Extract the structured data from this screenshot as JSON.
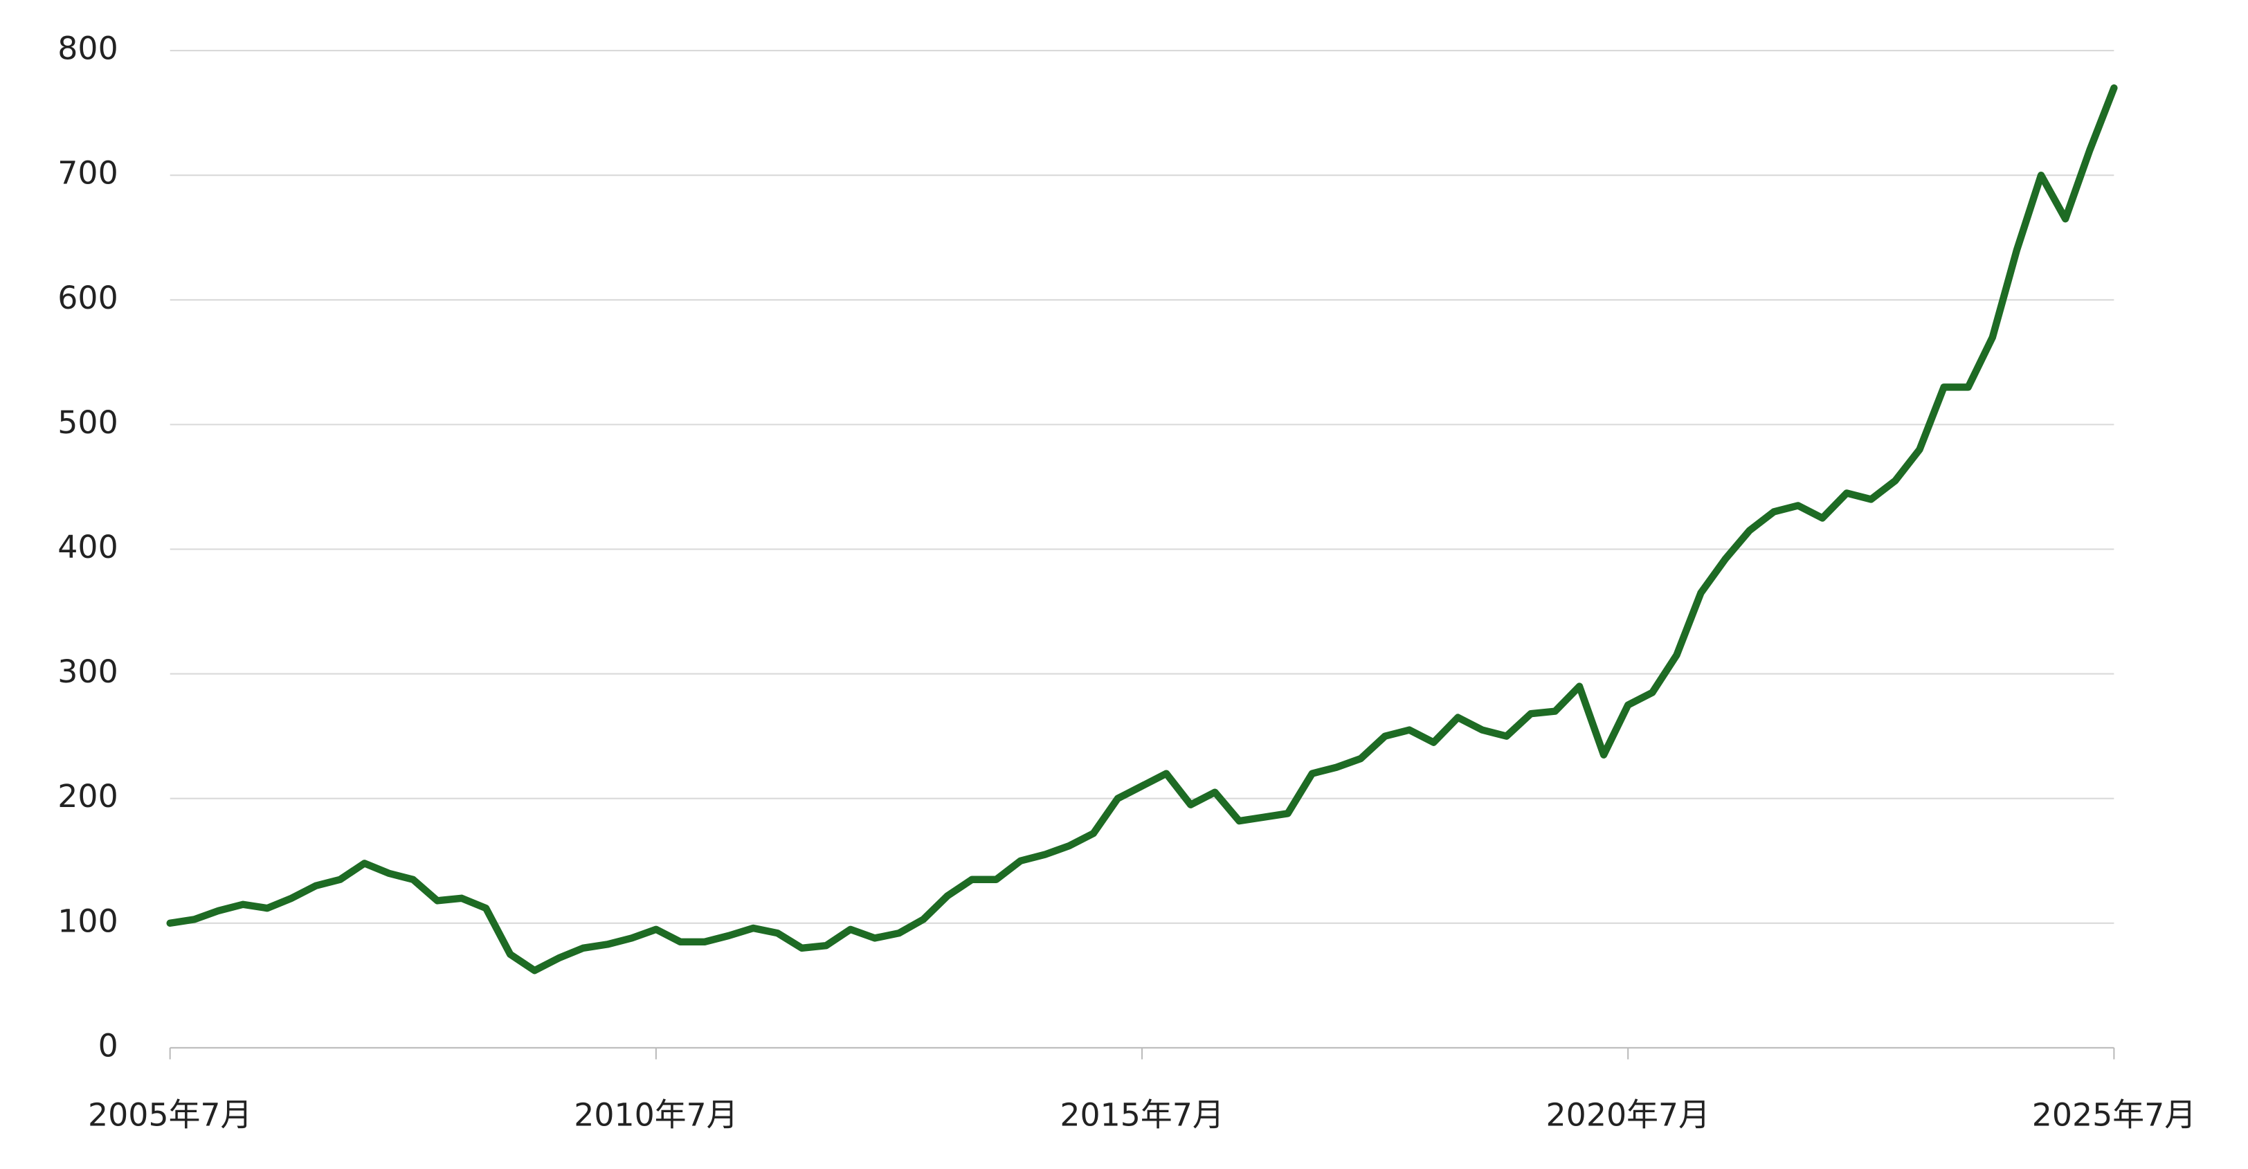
{
  "chart_data": {
    "type": "line",
    "x": [
      "2005-07",
      "2005-10",
      "2006-01",
      "2006-04",
      "2006-07",
      "2006-10",
      "2007-01",
      "2007-04",
      "2007-07",
      "2007-10",
      "2008-01",
      "2008-04",
      "2008-07",
      "2008-10",
      "2009-01",
      "2009-04",
      "2009-07",
      "2009-10",
      "2010-01",
      "2010-04",
      "2010-07",
      "2010-10",
      "2011-01",
      "2011-04",
      "2011-07",
      "2011-10",
      "2012-01",
      "2012-04",
      "2012-07",
      "2012-10",
      "2013-01",
      "2013-04",
      "2013-07",
      "2013-10",
      "2014-01",
      "2014-04",
      "2014-07",
      "2014-10",
      "2015-01",
      "2015-04",
      "2015-07",
      "2015-10",
      "2016-01",
      "2016-04",
      "2016-07",
      "2016-10",
      "2017-01",
      "2017-04",
      "2017-07",
      "2017-10",
      "2018-01",
      "2018-04",
      "2018-07",
      "2018-10",
      "2019-01",
      "2019-04",
      "2019-07",
      "2019-10",
      "2020-01",
      "2020-04",
      "2020-07",
      "2020-10",
      "2021-01",
      "2021-04",
      "2021-07",
      "2021-10",
      "2022-01",
      "2022-04",
      "2022-07",
      "2022-10",
      "2023-01",
      "2023-04",
      "2023-07",
      "2023-10",
      "2024-01",
      "2024-04",
      "2024-07",
      "2024-10",
      "2025-01",
      "2025-04",
      "2025-07"
    ],
    "series": [
      {
        "color": "#1e6b24",
        "values": [
          100,
          103,
          110,
          115,
          112,
          120,
          130,
          135,
          148,
          140,
          135,
          118,
          120,
          112,
          75,
          62,
          72,
          80,
          83,
          88,
          95,
          85,
          85,
          90,
          96,
          92,
          80,
          82,
          95,
          88,
          92,
          103,
          122,
          135,
          135,
          150,
          155,
          162,
          172,
          200,
          210,
          220,
          195,
          205,
          182,
          185,
          188,
          220,
          225,
          232,
          250,
          255,
          245,
          265,
          255,
          250,
          268,
          270,
          290,
          235,
          275,
          285,
          315,
          365,
          392,
          415,
          430,
          435,
          425,
          445,
          440,
          455,
          480,
          530,
          530,
          570,
          640,
          700,
          665,
          720,
          770
        ]
      }
    ],
    "ylim": [
      0,
      800
    ],
    "yticks": [
      0,
      100,
      200,
      300,
      400,
      500,
      600,
      700,
      800
    ],
    "xlim": [
      "2005-07",
      "2025-07"
    ],
    "xticks": [
      {
        "value": "2005-07",
        "label": "2005年7月"
      },
      {
        "value": "2010-07",
        "label": "2010年7月"
      },
      {
        "value": "2015-07",
        "label": "2015年7月"
      },
      {
        "value": "2020-07",
        "label": "2020年7月"
      },
      {
        "value": "2025-07",
        "label": "2025年7月"
      }
    ],
    "grid": true
  }
}
